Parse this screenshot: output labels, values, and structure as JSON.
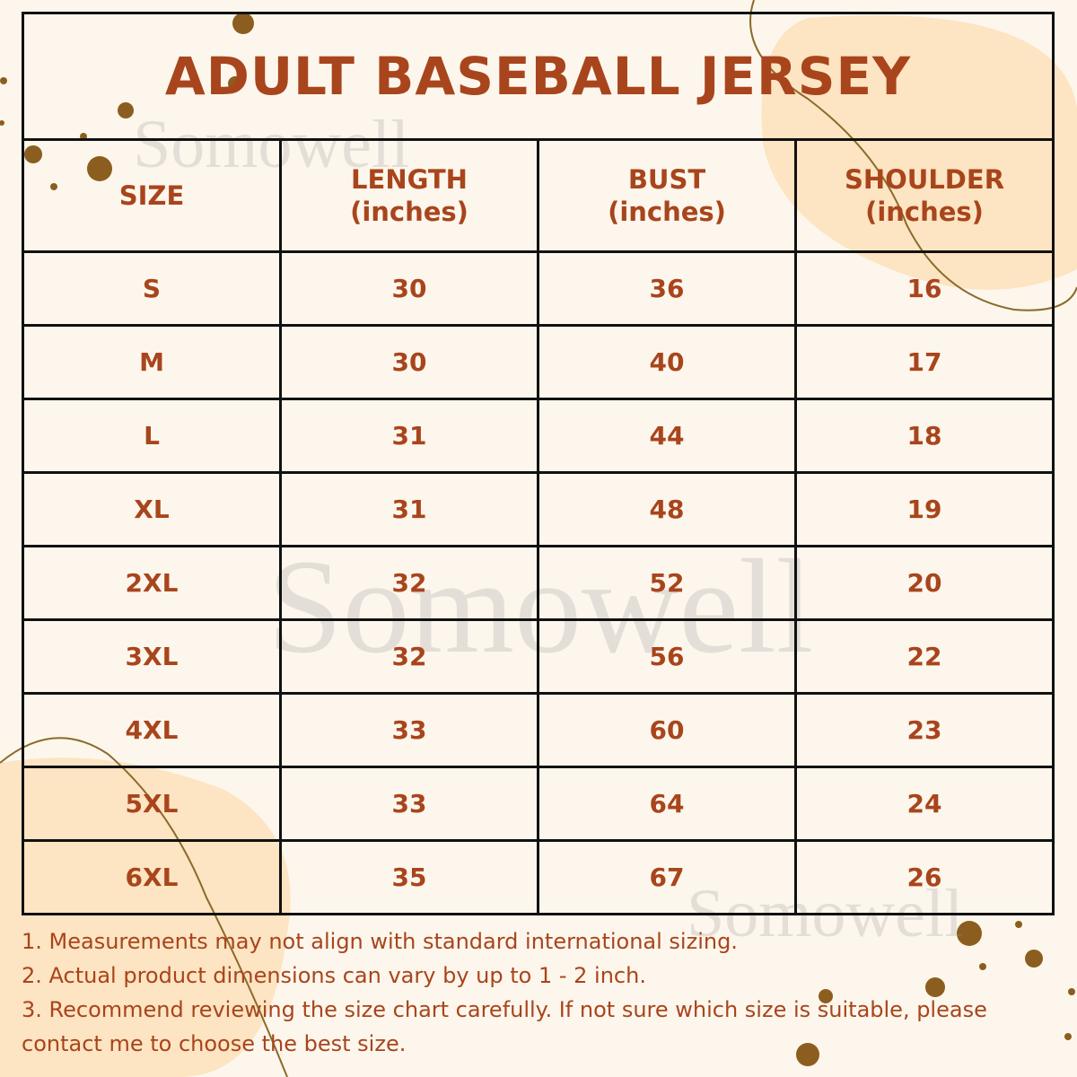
{
  "title": "ADULT BASEBALL JERSEY",
  "watermark": "Somowell",
  "colors": {
    "text": "#a8451c",
    "dots": "#8b5e1f",
    "background": "#fdf6ec",
    "blob": "#fde4c2",
    "border": "#111111"
  },
  "table": {
    "headers": [
      {
        "line1": "SIZE",
        "line2": ""
      },
      {
        "line1": "LENGTH",
        "line2": "(inches)"
      },
      {
        "line1": "BUST",
        "line2": "(inches)"
      },
      {
        "line1": "SHOULDER",
        "line2": "(inches)"
      }
    ],
    "rows": [
      [
        "S",
        "30",
        "36",
        "16"
      ],
      [
        "M",
        "30",
        "40",
        "17"
      ],
      [
        "L",
        "31",
        "44",
        "18"
      ],
      [
        "XL",
        "31",
        "48",
        "19"
      ],
      [
        "2XL",
        "32",
        "52",
        "20"
      ],
      [
        "3XL",
        "32",
        "56",
        "22"
      ],
      [
        "4XL",
        "33",
        "60",
        "23"
      ],
      [
        "5XL",
        "33",
        "64",
        "24"
      ],
      [
        "6XL",
        "35",
        "67",
        "26"
      ]
    ]
  },
  "notes": [
    "1. Measurements may not align with standard international sizing.",
    "2. Actual product dimensions can vary by up to 1 - 2 inch.",
    "3. Recommend reviewing the size chart carefully. If not sure which size is suitable, please contact me to choose the best size."
  ]
}
